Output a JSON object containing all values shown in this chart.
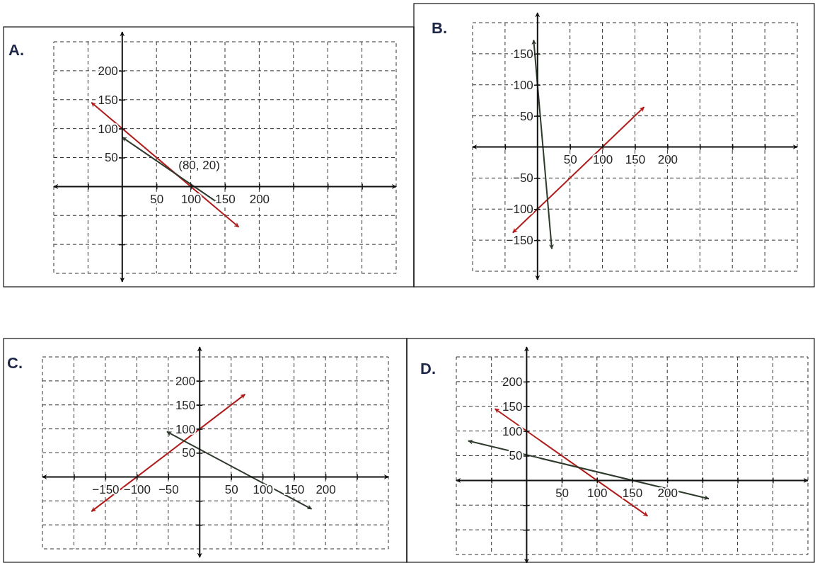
{
  "chart_data": [
    {
      "type": "line",
      "title": "A.",
      "xlim": [
        -100,
        400
      ],
      "ylim": [
        -150,
        250
      ],
      "xticks": [
        {
          "value": -50,
          "label": null
        },
        50,
        100,
        150,
        200,
        {
          "value": 250,
          "label": null
        },
        {
          "value": 300,
          "label": null
        },
        {
          "value": 350,
          "label": null
        }
      ],
      "yticks": [
        {
          "value": -100,
          "label": null
        },
        {
          "value": -50,
          "label": null
        },
        50,
        100,
        150,
        200
      ],
      "grid": true,
      "series": [
        {
          "color": "#b01c1c",
          "x": [
            -45,
            170
          ],
          "values": [
            145,
            -70
          ]
        },
        {
          "color": "#2e3a2c",
          "x": [
            0,
            142
          ],
          "values": [
            85,
            -30
          ]
        }
      ],
      "annotations": [
        {
          "text": "(80, 20)",
          "x": 80,
          "y": 20
        }
      ]
    },
    {
      "type": "line",
      "title": "B.",
      "xlim": [
        -100,
        400
      ],
      "ylim": [
        -200,
        200
      ],
      "xticks": [
        {
          "value": -50,
          "label": null
        },
        50,
        100,
        150,
        200,
        {
          "value": 250,
          "label": null
        },
        {
          "value": 300,
          "label": null
        },
        {
          "value": 350,
          "label": null
        }
      ],
      "yticks": [
        {
          "value": -150,
          "label": "−150"
        },
        {
          "value": -100,
          "label": "−100"
        },
        {
          "value": -50,
          "label": "−50"
        },
        50,
        100,
        150
      ],
      "grid": true,
      "series": [
        {
          "color": "#b01c1c",
          "x": [
            -38,
            164
          ],
          "values": [
            -138,
            64
          ]
        },
        {
          "color": "#2e3a2c",
          "x": [
            -6,
            22
          ],
          "values": [
            172,
            -164
          ]
        }
      ]
    },
    {
      "type": "line",
      "title": "C.",
      "xlim": [
        -250,
        300
      ],
      "ylim": [
        -150,
        250
      ],
      "xticks": [
        {
          "value": -200,
          "label": null
        },
        {
          "value": -150,
          "label": "−150"
        },
        {
          "value": -100,
          "label": "−100"
        },
        {
          "value": -50,
          "label": "−50"
        },
        50,
        100,
        150,
        200,
        {
          "value": 250,
          "label": null
        }
      ],
      "yticks": [
        {
          "value": -100,
          "label": null
        },
        {
          "value": -50,
          "label": null
        },
        50,
        100,
        150,
        200
      ],
      "grid": true,
      "series": [
        {
          "color": "#b01c1c",
          "x": [
            -172,
            72
          ],
          "values": [
            -72,
            172
          ]
        },
        {
          "color": "#2e3a2c",
          "x": [
            -52,
            178
          ],
          "values": [
            94,
            -67
          ]
        }
      ]
    },
    {
      "type": "line",
      "title": "D.",
      "xlim": [
        -100,
        400
      ],
      "ylim": [
        -150,
        250
      ],
      "xticks": [
        {
          "value": -50,
          "label": null
        },
        50,
        100,
        150,
        200,
        {
          "value": 250,
          "label": null
        },
        {
          "value": 300,
          "label": null
        },
        {
          "value": 350,
          "label": null
        }
      ],
      "yticks": [
        {
          "value": -100,
          "label": null
        },
        {
          "value": -50,
          "label": null
        },
        50,
        100,
        150,
        200
      ],
      "grid": true,
      "series": [
        {
          "color": "#b01c1c",
          "x": [
            -45,
            172
          ],
          "values": [
            145,
            -72
          ]
        },
        {
          "color": "#2e3a2c",
          "x": [
            -83,
            259
          ],
          "values": [
            80,
            -37
          ]
        }
      ]
    }
  ]
}
